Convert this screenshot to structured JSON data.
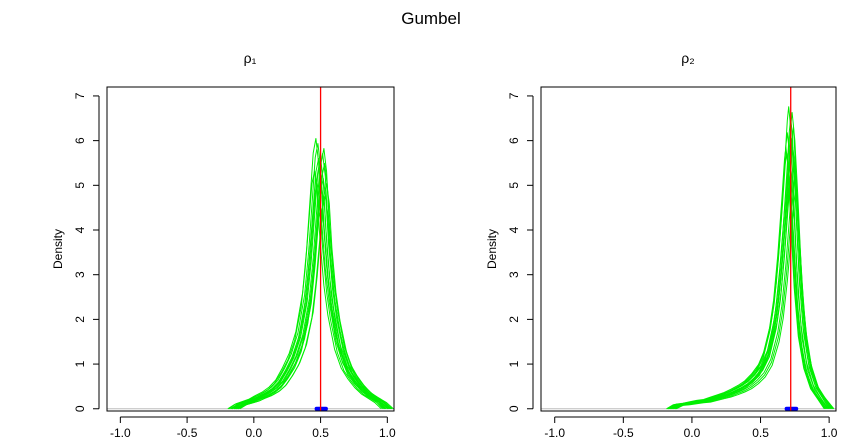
{
  "figure": {
    "title": "Gumbel"
  },
  "chart_data": [
    {
      "type": "line",
      "title": "ρ₁",
      "xlabel": "",
      "ylabel": "Density",
      "xlim": [
        -1.1,
        1.05
      ],
      "ylim": [
        -0.05,
        7.2
      ],
      "xticks": [
        "-1.0",
        "-0.5",
        "0.0",
        "0.5",
        "1.0"
      ],
      "yticks": [
        "0",
        "1",
        "2",
        "3",
        "4",
        "5",
        "6",
        "7"
      ],
      "true_value": 0.5,
      "legend": "none",
      "grid": false,
      "curve_template": {
        "x": [
          -0.15,
          -0.1,
          -0.05,
          0.0,
          0.05,
          0.1,
          0.15,
          0.2,
          0.25,
          0.3,
          0.35,
          0.4,
          0.43,
          0.46,
          0.48,
          0.5,
          0.52,
          0.54,
          0.57,
          0.6,
          0.65,
          0.7,
          0.75,
          0.8,
          0.85,
          0.9,
          0.95,
          1.0
        ],
        "y": [
          0.0,
          0.1,
          0.15,
          0.2,
          0.28,
          0.35,
          0.45,
          0.6,
          0.85,
          1.15,
          1.6,
          2.4,
          3.3,
          4.5,
          5.3,
          5.6,
          5.1,
          4.0,
          2.9,
          2.2,
          1.4,
          0.95,
          0.7,
          0.5,
          0.35,
          0.25,
          0.15,
          0.0
        ]
      },
      "replicates": [
        {
          "shift": 0.0,
          "scale": 1.0
        },
        {
          "shift": -0.02,
          "scale": 1.06
        },
        {
          "shift": 0.02,
          "scale": 0.92
        },
        {
          "shift": -0.035,
          "scale": 1.08
        },
        {
          "shift": 0.035,
          "scale": 0.85
        },
        {
          "shift": -0.01,
          "scale": 0.97
        },
        {
          "shift": 0.015,
          "scale": 1.02
        },
        {
          "shift": -0.025,
          "scale": 0.9
        },
        {
          "shift": 0.025,
          "scale": 1.04
        },
        {
          "shift": 0.005,
          "scale": 0.8
        },
        {
          "shift": -0.045,
          "scale": 0.95
        },
        {
          "shift": 0.045,
          "scale": 0.9
        },
        {
          "shift": -0.015,
          "scale": 1.0
        },
        {
          "shift": 0.01,
          "scale": 0.88
        },
        {
          "shift": 0.03,
          "scale": 0.98
        }
      ],
      "estimate_range": [
        0.47,
        0.54
      ],
      "colors": {
        "curves": "#00ee00",
        "true_line": "#ff0000",
        "estimate": "#0000ff",
        "baseline": "#bebebe"
      }
    },
    {
      "type": "line",
      "title": "ρ₂",
      "xlabel": "",
      "ylabel": "Density",
      "xlim": [
        -1.1,
        1.05
      ],
      "ylim": [
        -0.05,
        7.2
      ],
      "xticks": [
        "-1.0",
        "-0.5",
        "0.0",
        "0.5",
        "1.0"
      ],
      "yticks": [
        "0",
        "1",
        "2",
        "3",
        "4",
        "5",
        "6",
        "7"
      ],
      "true_value": 0.72,
      "legend": "none",
      "grid": false,
      "curve_template": {
        "x": [
          -0.15,
          -0.1,
          -0.05,
          0.0,
          0.05,
          0.1,
          0.15,
          0.2,
          0.25,
          0.3,
          0.35,
          0.4,
          0.45,
          0.5,
          0.55,
          0.6,
          0.63,
          0.66,
          0.69,
          0.71,
          0.72,
          0.73,
          0.75,
          0.78,
          0.81,
          0.85,
          0.9,
          0.95,
          1.0
        ],
        "y": [
          0.0,
          0.1,
          0.12,
          0.15,
          0.18,
          0.2,
          0.25,
          0.3,
          0.35,
          0.42,
          0.5,
          0.6,
          0.75,
          0.95,
          1.3,
          2.0,
          2.7,
          3.8,
          5.2,
          6.2,
          6.5,
          6.2,
          5.0,
          3.0,
          1.8,
          1.0,
          0.5,
          0.25,
          0.0
        ]
      },
      "replicates": [
        {
          "shift": 0.0,
          "scale": 1.0
        },
        {
          "shift": -0.015,
          "scale": 1.04
        },
        {
          "shift": 0.015,
          "scale": 0.9
        },
        {
          "shift": -0.025,
          "scale": 0.95
        },
        {
          "shift": 0.025,
          "scale": 0.85
        },
        {
          "shift": -0.01,
          "scale": 0.78
        },
        {
          "shift": 0.01,
          "scale": 1.02
        },
        {
          "shift": -0.03,
          "scale": 0.88
        },
        {
          "shift": 0.03,
          "scale": 0.8
        },
        {
          "shift": 0.005,
          "scale": 0.93
        },
        {
          "shift": -0.005,
          "scale": 0.85
        },
        {
          "shift": 0.02,
          "scale": 0.97
        },
        {
          "shift": -0.02,
          "scale": 0.82
        },
        {
          "shift": 0.035,
          "scale": 0.75
        },
        {
          "shift": -0.035,
          "scale": 0.9
        }
      ],
      "estimate_range": [
        0.69,
        0.76
      ],
      "colors": {
        "curves": "#00ee00",
        "true_line": "#ff0000",
        "estimate": "#0000ff",
        "baseline": "#bebebe"
      }
    }
  ]
}
